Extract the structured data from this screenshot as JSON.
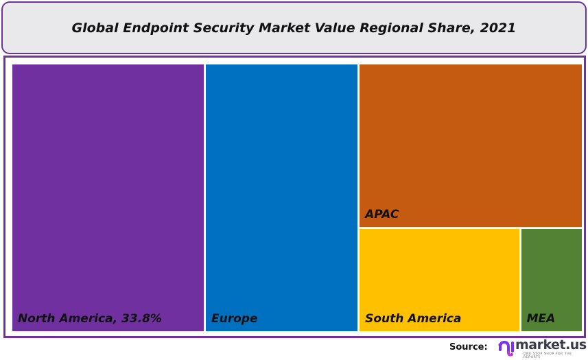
{
  "chart_data": {
    "type": "treemap",
    "title": "Global Endpoint Security Market Value Regional Share, 2021",
    "unit": "%",
    "items": [
      {
        "name": "North America",
        "label": "North America, 33.8%",
        "value": 33.8,
        "color": "#7030a0"
      },
      {
        "name": "Europe",
        "label": "Europe",
        "value": 27.0,
        "color": "#0070c0"
      },
      {
        "name": "APAC",
        "label": "APAC",
        "value": 24.0,
        "color": "#c55a11"
      },
      {
        "name": "South America",
        "label": "South America",
        "value": 11.0,
        "color": "#ffc000"
      },
      {
        "name": "MEA",
        "label": "MEA",
        "value": 4.2,
        "color": "#548235"
      }
    ],
    "border_color": "#7030a0"
  },
  "footer": {
    "source_label": "Source:",
    "logo_text": "market.us",
    "logo_tagline": "ONE STOP SHOP FOR THE REPORTS"
  }
}
